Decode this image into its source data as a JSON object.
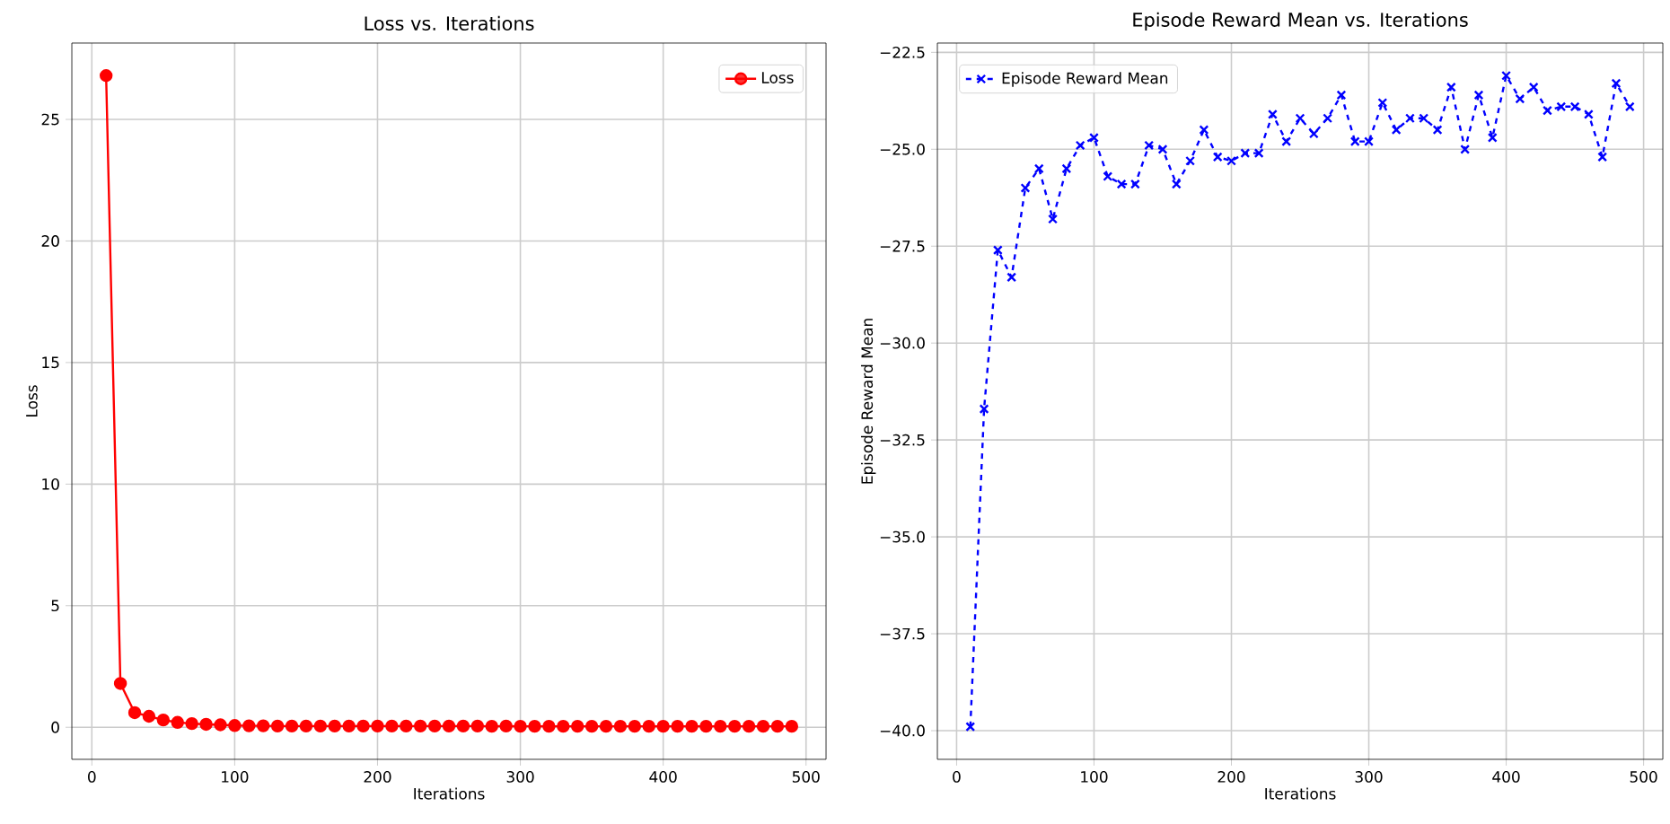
{
  "chart_data": [
    {
      "type": "line",
      "title": "Loss vs. Iterations",
      "xlabel": "Iterations",
      "ylabel": "Loss",
      "x": [
        10,
        20,
        30,
        40,
        50,
        60,
        70,
        80,
        90,
        100,
        110,
        120,
        130,
        140,
        150,
        160,
        170,
        180,
        190,
        200,
        210,
        220,
        230,
        240,
        250,
        260,
        270,
        280,
        290,
        300,
        310,
        320,
        330,
        340,
        350,
        360,
        370,
        380,
        390,
        400,
        410,
        420,
        430,
        440,
        450,
        460,
        470,
        480,
        490
      ],
      "series": [
        {
          "name": "Loss",
          "color": "#ff0000",
          "values": [
            26.8,
            1.8,
            0.6,
            0.45,
            0.3,
            0.2,
            0.15,
            0.12,
            0.1,
            0.07,
            0.06,
            0.06,
            0.05,
            0.05,
            0.05,
            0.05,
            0.05,
            0.05,
            0.05,
            0.05,
            0.05,
            0.05,
            0.05,
            0.05,
            0.05,
            0.05,
            0.05,
            0.04,
            0.05,
            0.04,
            0.04,
            0.04,
            0.04,
            0.04,
            0.04,
            0.04,
            0.04,
            0.04,
            0.04,
            0.04,
            0.04,
            0.04,
            0.04,
            0.04,
            0.04,
            0.04,
            0.04,
            0.04,
            0.04
          ]
        }
      ],
      "xlim": [
        -14,
        514
      ],
      "ylim": [
        -1.32,
        28.14
      ],
      "xticks": [
        0,
        100,
        200,
        300,
        400,
        500
      ],
      "yticks": [
        0,
        5,
        10,
        15,
        20,
        25
      ],
      "grid": true,
      "legend": "top right",
      "marker": "circle",
      "line_style": "solid"
    },
    {
      "type": "line",
      "title": "Episode Reward Mean vs. Iterations",
      "xlabel": "Iterations",
      "ylabel": "Episode Reward Mean",
      "x": [
        10,
        20,
        30,
        40,
        50,
        60,
        70,
        80,
        90,
        100,
        110,
        120,
        130,
        140,
        150,
        160,
        170,
        180,
        190,
        200,
        210,
        220,
        230,
        240,
        250,
        260,
        270,
        280,
        290,
        300,
        310,
        320,
        330,
        340,
        350,
        360,
        370,
        380,
        390,
        400,
        410,
        420,
        430,
        440,
        450,
        460,
        470,
        480,
        490
      ],
      "series": [
        {
          "name": "Episode Reward Mean",
          "color": "#0000ff",
          "values": [
            -39.9,
            -31.7,
            -27.6,
            -28.3,
            -26.0,
            -25.5,
            -26.8,
            -25.5,
            -24.9,
            -24.7,
            -25.7,
            -25.9,
            -25.9,
            -24.9,
            -25.0,
            -25.9,
            -25.3,
            -24.5,
            -25.2,
            -25.3,
            -25.1,
            -25.1,
            -24.1,
            -24.8,
            -24.2,
            -24.6,
            -24.2,
            -23.6,
            -24.8,
            -24.8,
            -23.8,
            -24.5,
            -24.2,
            -24.2,
            -24.5,
            -23.4,
            -25.0,
            -23.6,
            -24.7,
            -23.1,
            -23.7,
            -23.4,
            -24.0,
            -23.9,
            -23.9,
            -24.1,
            -25.2,
            -23.3,
            -23.9
          ]
        }
      ],
      "xlim": [
        -14,
        514
      ],
      "ylim": [
        -40.74,
        -22.26
      ],
      "xticks": [
        0,
        100,
        200,
        300,
        400,
        500
      ],
      "yticks": [
        {
          "value": -40,
          "label": "−40.0"
        },
        {
          "value": -37.5,
          "label": "−37.5"
        },
        {
          "value": -35,
          "label": "−35.0"
        },
        {
          "value": -32.5,
          "label": "−32.5"
        },
        {
          "value": -30,
          "label": "−30.0"
        },
        {
          "value": -27.5,
          "label": "−27.5"
        },
        {
          "value": -25,
          "label": "−25.0"
        },
        {
          "value": -22.5,
          "label": "−22.5"
        }
      ],
      "grid": true,
      "legend": "top left",
      "marker": "cross",
      "line_style": "dashed"
    }
  ]
}
